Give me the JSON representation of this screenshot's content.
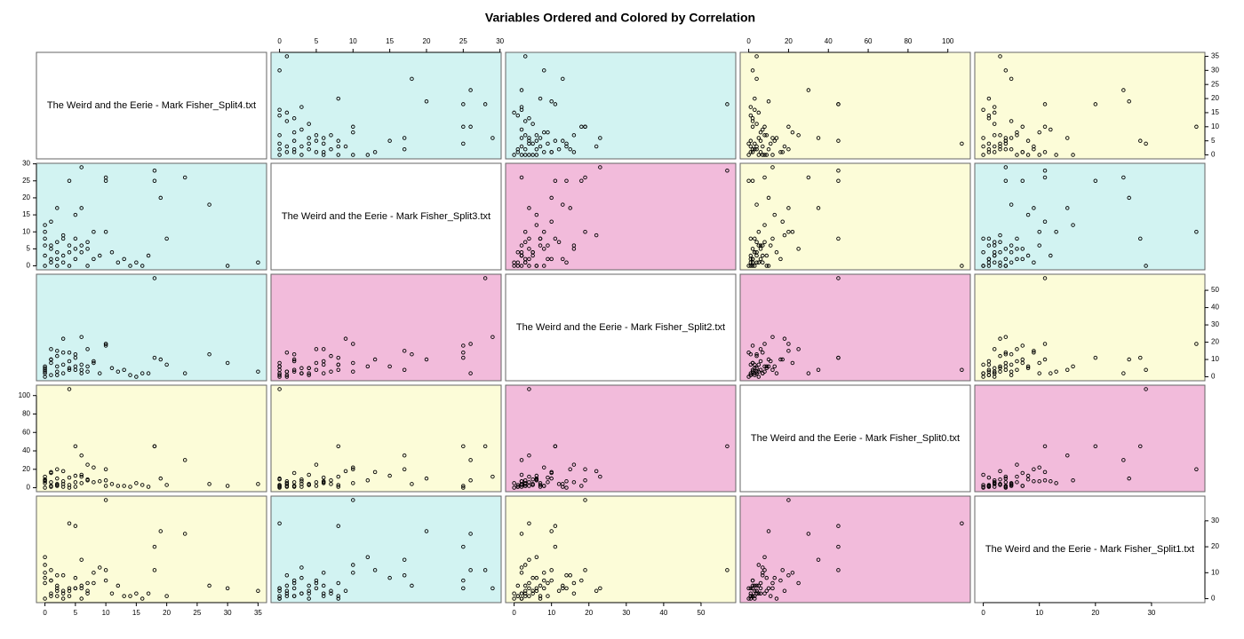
{
  "chart_data": {
    "type": "scatter-matrix",
    "title": "Variables Ordered and Colored by Correlation",
    "point_color": "#000000",
    "panel_colors": [
      [
        "#ffffff",
        "#d2f3f2",
        "#d2f3f2",
        "#fcfcd8",
        "#fcfcd8"
      ],
      [
        "#d2f3f2",
        "#ffffff",
        "#f2bbdb",
        "#fcfcd8",
        "#d2f3f2"
      ],
      [
        "#d2f3f2",
        "#f2bbdb",
        "#ffffff",
        "#f2bbdb",
        "#fcfcd8"
      ],
      [
        "#fcfcd8",
        "#fcfcd8",
        "#f2bbdb",
        "#ffffff",
        "#f2bbdb"
      ],
      [
        "#fcfcd8",
        "#d2f3f2",
        "#fcfcd8",
        "#f2bbdb",
        "#ffffff"
      ]
    ],
    "variables": [
      {
        "name": "The Weird and the Eerie - Mark Fisher_Split4.txt",
        "lim": [
          -1.4,
          36.4
        ],
        "ticks": [
          0,
          5,
          10,
          15,
          20,
          25,
          30,
          35
        ],
        "values": [
          4,
          18,
          10,
          6,
          35,
          30,
          27,
          23,
          19,
          18,
          20,
          17,
          10,
          10,
          5,
          4,
          8,
          6,
          5,
          2,
          1,
          0,
          3,
          7,
          9,
          12,
          14,
          15,
          16,
          0,
          1,
          2,
          3,
          4,
          5,
          6,
          7,
          8,
          0,
          1,
          2,
          3,
          4,
          5,
          6,
          7,
          0,
          1,
          2,
          3,
          0,
          1,
          2,
          0,
          11,
          13
        ]
      },
      {
        "name": "The Weird and the Eerie - Mark Fisher_Split3.txt",
        "lim": [
          -1.16,
          30.16
        ],
        "ticks": [
          0,
          5,
          10,
          15,
          20,
          25,
          30
        ],
        "values": [
          0,
          28,
          10,
          29,
          1,
          0,
          18,
          26,
          20,
          25,
          8,
          3,
          25,
          26,
          8,
          25,
          10,
          17,
          15,
          17,
          13,
          12,
          9,
          5,
          3,
          1,
          0,
          1,
          0,
          0,
          1,
          2,
          3,
          4,
          5,
          6,
          7,
          2,
          3,
          5,
          7,
          1,
          6,
          2,
          4,
          0,
          8,
          6,
          4,
          8,
          10,
          2,
          0,
          6,
          4,
          2
        ]
      },
      {
        "name": "The Weird and the Eerie - Mark Fisher_Split2.txt",
        "lim": [
          -2.28,
          59.28
        ],
        "ticks": [
          0,
          10,
          20,
          30,
          40,
          50
        ],
        "values": [
          4,
          57,
          19,
          23,
          3,
          8,
          13,
          2,
          10,
          11,
          7,
          2,
          18,
          19,
          11,
          14,
          8,
          4,
          6,
          15,
          10,
          6,
          22,
          16,
          2,
          3,
          1,
          0,
          2,
          0,
          1,
          3,
          2,
          5,
          4,
          7,
          3,
          9,
          5,
          8,
          12,
          14,
          9,
          13,
          2,
          6,
          4,
          16,
          1,
          7,
          3,
          10,
          6,
          2,
          5,
          4
        ]
      },
      {
        "name": "The Weird and the Eerie - Mark Fisher_Split0.txt",
        "lim": [
          -4.28,
          111.28
        ],
        "ticks": [
          0,
          20,
          40,
          60,
          80,
          100
        ],
        "values": [
          107,
          45,
          20,
          12,
          4,
          2,
          4,
          30,
          10,
          45,
          3,
          1,
          2,
          8,
          45,
          0,
          22,
          35,
          13,
          20,
          17,
          8,
          18,
          25,
          7,
          2,
          1,
          5,
          3,
          0,
          1,
          2,
          4,
          3,
          6,
          5,
          8,
          6,
          9,
          2,
          4,
          7,
          11,
          1,
          14,
          9,
          12,
          6,
          3,
          1,
          5,
          16,
          10,
          7,
          4,
          2
        ]
      },
      {
        "name": "The Weird and the Eerie - Mark Fisher_Split1.txt",
        "lim": [
          -1.52,
          39.52
        ],
        "ticks": [
          0,
          10,
          20,
          30
        ],
        "values": [
          29,
          11,
          38,
          4,
          3,
          4,
          5,
          25,
          26,
          20,
          1,
          2,
          7,
          11,
          28,
          4,
          10,
          15,
          8,
          9,
          11,
          16,
          3,
          6,
          12,
          5,
          1,
          2,
          0,
          0,
          1,
          1,
          2,
          3,
          4,
          5,
          2,
          6,
          8,
          7,
          3,
          9,
          1,
          4,
          0,
          3,
          6,
          2,
          5,
          0,
          13,
          7,
          4,
          10,
          2,
          1
        ]
      }
    ]
  }
}
